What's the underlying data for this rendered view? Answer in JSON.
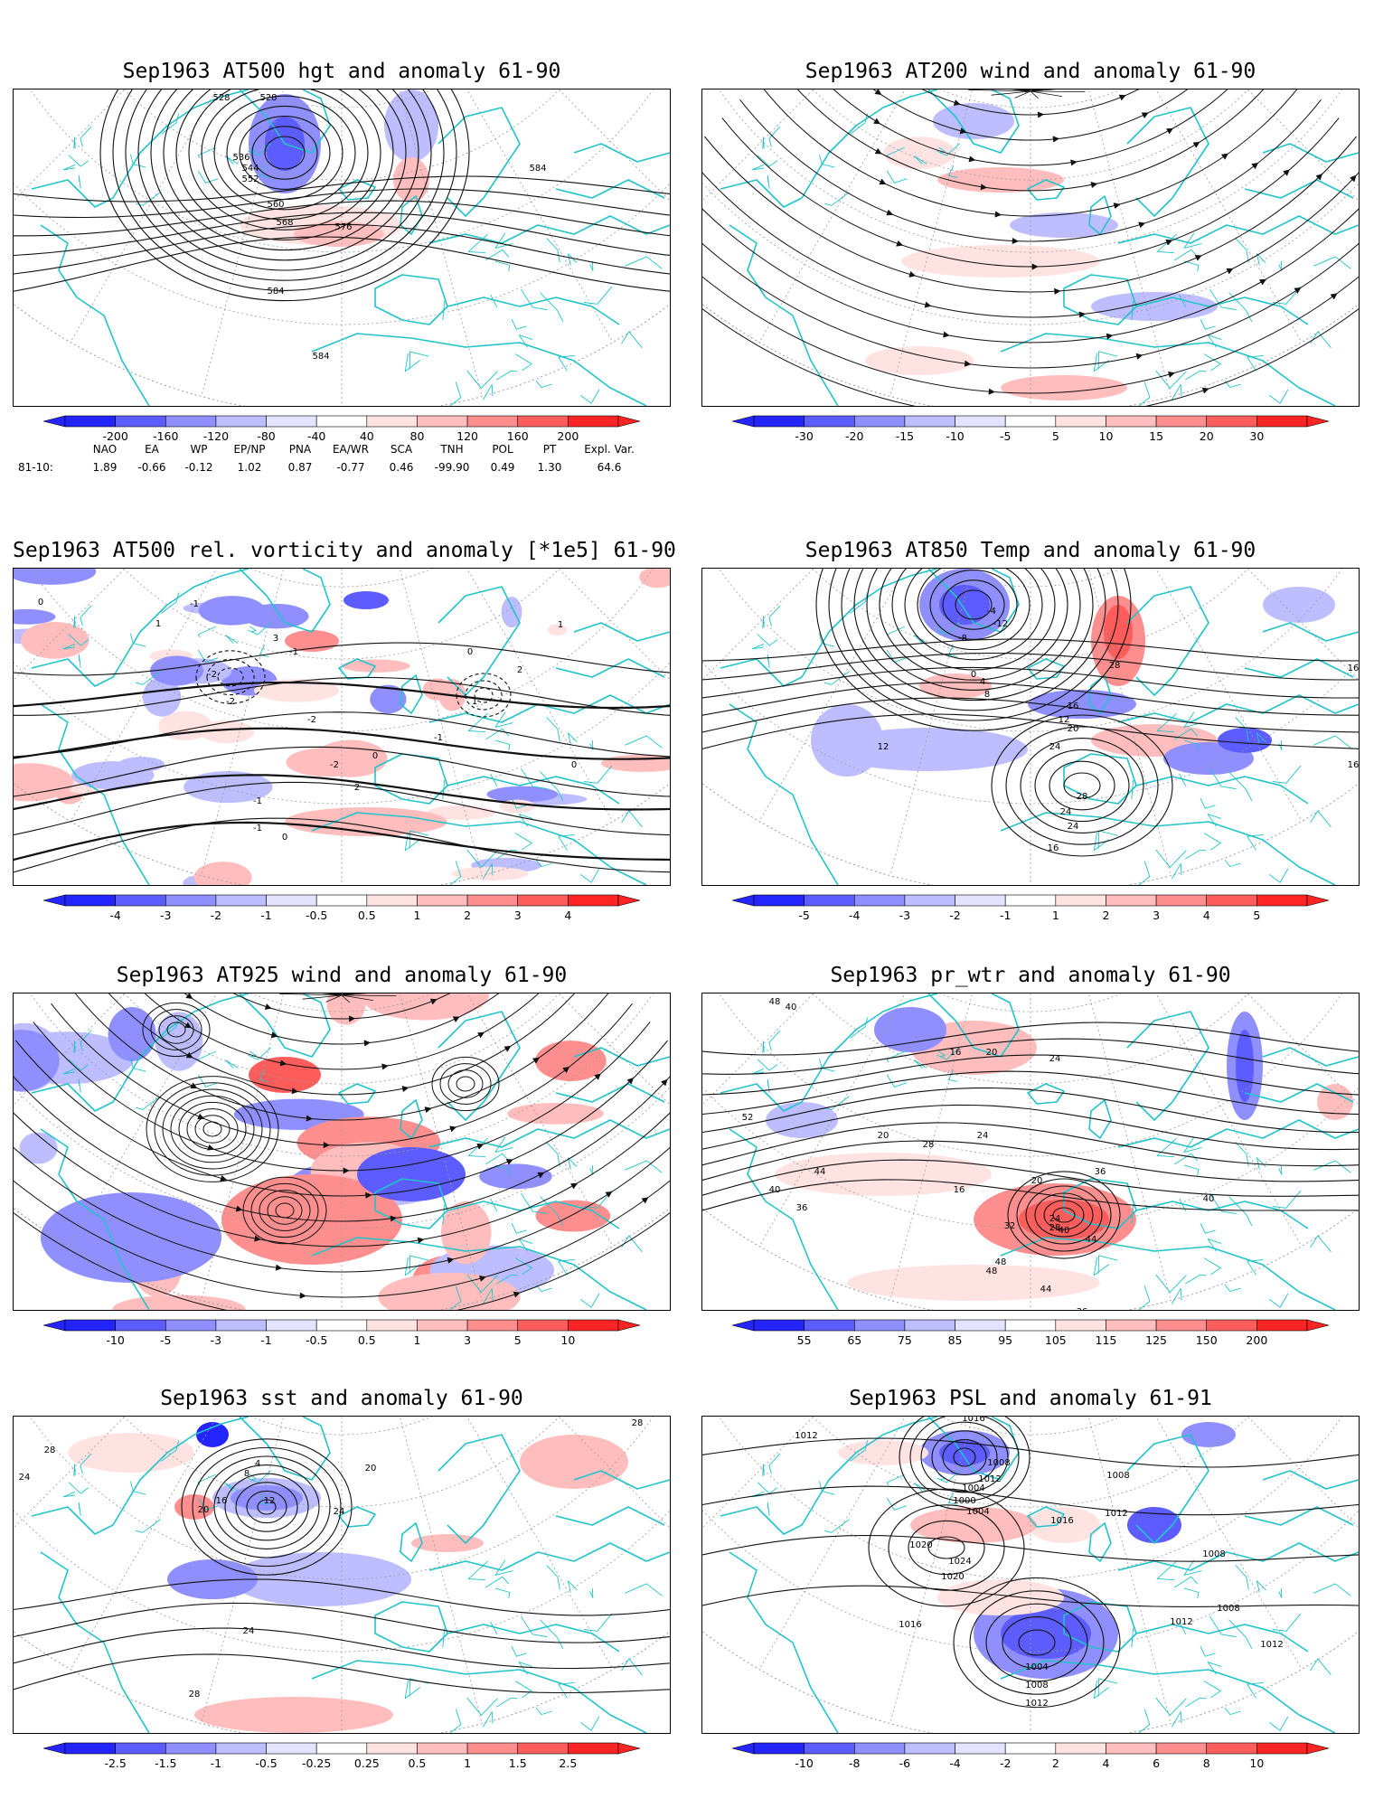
{
  "colors": {
    "coast": "#22c3c9",
    "contour": "#111111",
    "graticule": "#9a9a9a",
    "neg": [
      "#2424ff",
      "#5c5cff",
      "#8f8fff",
      "#bdbdff",
      "#e3e3ff"
    ],
    "pos": [
      "#ffe3e3",
      "#ffbdbd",
      "#ff8f8f",
      "#ff5c5c",
      "#ff2424"
    ]
  },
  "panels": [
    {
      "id": "hgt500",
      "title": "Sep1963 AT500 hgt and anomaly 61-90",
      "kind": "height",
      "colorbar_ticks": [
        "-200",
        "-160",
        "-120",
        "-80",
        "-40",
        "40",
        "80",
        "120",
        "160",
        "200"
      ],
      "contour_labels": [
        "528",
        "528",
        "536",
        "544",
        "552",
        "560",
        "568",
        "576",
        "584",
        "584",
        "584"
      ]
    },
    {
      "id": "wind200",
      "title": "Sep1963 AT200 wind and anomaly 61-90",
      "kind": "wind",
      "colorbar_ticks": [
        "-30",
        "-20",
        "-15",
        "-10",
        "-5",
        "5",
        "10",
        "15",
        "20",
        "30"
      ],
      "contour_labels": []
    },
    {
      "id": "vort500",
      "title": "Sep1963 AT500 rel. vorticity and anomaly [*1e5] 61-90",
      "kind": "vorticity",
      "colorbar_ticks": [
        "-4",
        "-3",
        "-2",
        "-1",
        "-0.5",
        "0.5",
        "1",
        "2",
        "3",
        "4"
      ],
      "contour_labels": [
        "0",
        "-1",
        "-2",
        "3",
        "-1",
        "-2",
        "1",
        "-2",
        "-1",
        "0",
        "1",
        "2",
        "-1",
        "-2",
        "0",
        "1",
        "2",
        "0",
        "-1",
        "0"
      ]
    },
    {
      "id": "temp850",
      "title": "Sep1963 AT850 Temp and anomaly 61-90",
      "kind": "temp",
      "colorbar_ticks": [
        "-5",
        "-4",
        "-3",
        "-2",
        "-1",
        "1",
        "2",
        "3",
        "4",
        "5"
      ],
      "contour_labels": [
        "-8",
        "-12",
        "-4",
        "0",
        "4",
        "8",
        "12",
        "16",
        "16",
        "20",
        "24",
        "24",
        "28",
        "28",
        "12",
        "16",
        "16",
        "24"
      ]
    },
    {
      "id": "wind925",
      "title": "Sep1963 AT925 wind and anomaly 61-90",
      "kind": "wind925",
      "colorbar_ticks": [
        "-10",
        "-5",
        "-3",
        "-1",
        "-0.5",
        "0.5",
        "1",
        "3",
        "5",
        "10"
      ],
      "contour_labels": []
    },
    {
      "id": "prwtr",
      "title": "Sep1963 pr_wtr and anomaly 61-90",
      "kind": "prwtr",
      "colorbar_ticks": [
        "55",
        "65",
        "75",
        "85",
        "95",
        "105",
        "115",
        "125",
        "150",
        "200"
      ],
      "contour_labels": [
        "48",
        "40",
        "44",
        "52",
        "40",
        "36",
        "20",
        "16",
        "20",
        "24",
        "28",
        "24",
        "20",
        "16",
        "36",
        "40",
        "44",
        "24",
        "28",
        "32",
        "40",
        "48",
        "44",
        "36",
        "48"
      ]
    },
    {
      "id": "sst",
      "title": "Sep1963 sst and anomaly 61-90",
      "kind": "sst",
      "colorbar_ticks": [
        "-2.5",
        "-1.5",
        "-1",
        "-0.5",
        "-0.25",
        "0.25",
        "0.5",
        "1",
        "1.5",
        "2.5"
      ],
      "contour_labels": [
        "28",
        "24",
        "20",
        "16",
        "12",
        "8",
        "4",
        "24",
        "20",
        "24",
        "28",
        "28"
      ]
    },
    {
      "id": "psl",
      "title": "Sep1963 PSL and anomaly 61-91",
      "kind": "psl",
      "colorbar_ticks": [
        "-10",
        "-8",
        "-6",
        "-4",
        "-2",
        "2",
        "4",
        "6",
        "8",
        "10"
      ],
      "contour_labels": [
        "1012",
        "1016",
        "1008",
        "1012",
        "1004",
        "1000",
        "1004",
        "1008",
        "1020",
        "1024",
        "1020",
        "1016",
        "1016",
        "1012",
        "1008",
        "1008",
        "1012",
        "1004",
        "1008",
        "1012",
        "1012"
      ]
    }
  ],
  "teleconnections": {
    "row_label": "81-10:",
    "headers": [
      "NAO",
      "EA",
      "WP",
      "EP/NP",
      "PNA",
      "EA/WR",
      "SCA",
      "TNH",
      "POL",
      "PT",
      "Expl. Var."
    ],
    "values": [
      "1.89",
      "-0.66",
      "-0.12",
      "1.02",
      "0.87",
      "-0.77",
      "0.46",
      "-99.90",
      "0.49",
      "1.30",
      "64.6"
    ]
  }
}
